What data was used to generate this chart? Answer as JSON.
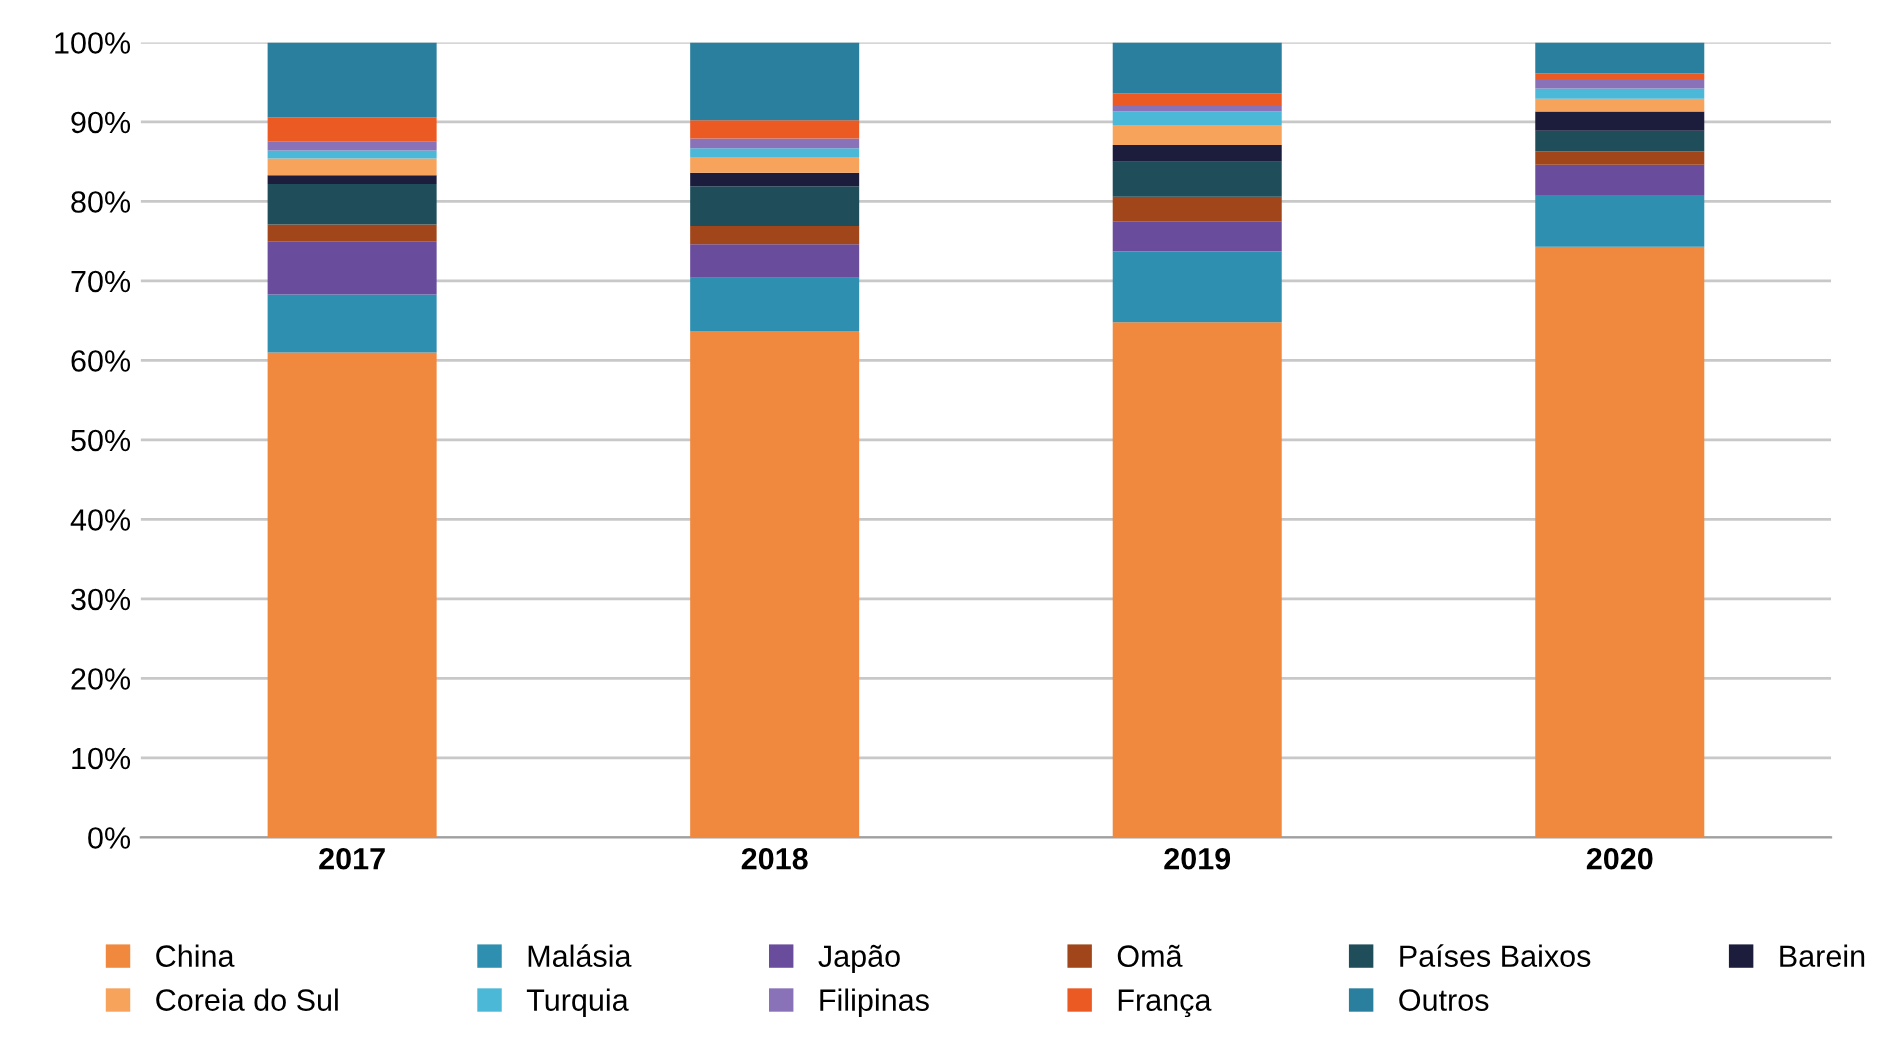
{
  "chart_data": {
    "type": "bar",
    "stacked": true,
    "categories": [
      "2017",
      "2018",
      "2019",
      "2020"
    ],
    "series": [
      {
        "name": "China",
        "color": "#f0883e",
        "values": [
          61,
          63.7,
          64.8,
          74.3
        ]
      },
      {
        "name": "Malásia",
        "color": "#2e8fb0",
        "values": [
          7.3,
          6.7,
          8.9,
          6.5
        ]
      },
      {
        "name": "Japão",
        "color": "#6a4c9c",
        "values": [
          6.7,
          4.2,
          3.8,
          3.8
        ]
      },
      {
        "name": "Omã",
        "color": "#a0461a",
        "values": [
          2.1,
          2.3,
          3.1,
          1.7
        ]
      },
      {
        "name": "Países Baixos",
        "color": "#1f4e5a",
        "values": [
          5.1,
          5.0,
          4.4,
          2.6
        ]
      },
      {
        "name": "Barein",
        "color": "#1c1c3c",
        "values": [
          1.1,
          1.7,
          2.1,
          2.4
        ]
      },
      {
        "name": "Coreia do Sul",
        "color": "#f7a35c",
        "values": [
          2.1,
          2.0,
          2.5,
          1.6
        ]
      },
      {
        "name": "Turquia",
        "color": "#4cb8d8",
        "values": [
          1.0,
          1.1,
          1.7,
          1.3
        ]
      },
      {
        "name": "Filipinas",
        "color": "#8a72b8",
        "values": [
          1.1,
          1.2,
          0.7,
          1.2
        ]
      },
      {
        "name": "França",
        "color": "#ec5a24",
        "values": [
          3.1,
          2.3,
          1.6,
          0.7
        ]
      },
      {
        "name": "Outros",
        "color": "#2a7f9e",
        "values": [
          9.4,
          9.8,
          6.4,
          3.9
        ]
      }
    ],
    "ylim": [
      0,
      100
    ],
    "yticks": [
      {
        "value": 0,
        "label": "0%"
      },
      {
        "value": 10,
        "label": "10%"
      },
      {
        "value": 20,
        "label": "20%"
      },
      {
        "value": 30,
        "label": "30%"
      },
      {
        "value": 40,
        "label": "40%"
      },
      {
        "value": 50,
        "label": "50%"
      },
      {
        "value": 60,
        "label": "60%"
      },
      {
        "value": 70,
        "label": "70%"
      },
      {
        "value": 80,
        "label": "80%"
      },
      {
        "value": 90,
        "label": "90%"
      },
      {
        "value": 100,
        "label": "100%"
      }
    ],
    "grid": "y",
    "legend": "bottom"
  }
}
